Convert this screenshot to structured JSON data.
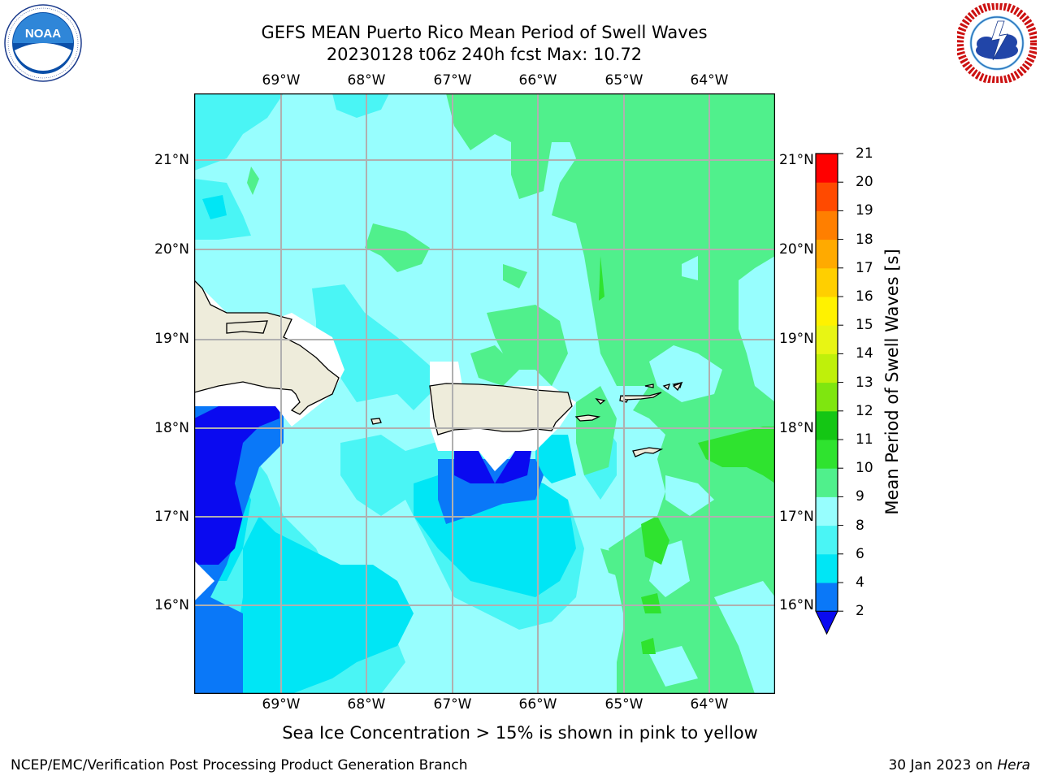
{
  "header": {
    "title_line1": "GEFS MEAN Puerto Rico Mean Period of Swell Waves",
    "title_line2": "20230128 t06z 240h fcst   Max: 10.72"
  },
  "logos": {
    "noaa": {
      "text": "NOAA",
      "ring_text": "NATIONAL OCEANIC AND ATMOSPHERIC ADMINISTRATION · U.S. DEPARTMENT OF COMMERCE"
    },
    "nws": {
      "ring_text": "NATIONAL WEATHER SERVICE"
    }
  },
  "map": {
    "lon_labels": [
      "69°W",
      "68°W",
      "67°W",
      "66°W",
      "65°W",
      "64°W"
    ],
    "lat_labels": [
      "21°N",
      "20°N",
      "19°N",
      "18°N",
      "17°N",
      "16°N"
    ],
    "land_color": "#eeecdb",
    "background_color": "#97fefe"
  },
  "colorbar": {
    "title": "Mean Period of Swell Waves [s]",
    "ticks": [
      "2",
      "4",
      "6",
      "8",
      "9",
      "10",
      "11",
      "12",
      "13",
      "14",
      "15",
      "16",
      "17",
      "18",
      "19",
      "20",
      "21"
    ],
    "colors": [
      "#0a0af0",
      "#0a78f8",
      "#00e6f5",
      "#4af5f5",
      "#97fefe",
      "#50f08c",
      "#2fe32f",
      "#14c614",
      "#7fe60f",
      "#bff00a",
      "#e8f514",
      "#fff200",
      "#ffcf00",
      "#ffaa00",
      "#ff7f00",
      "#ff4a00",
      "#ff0000"
    ]
  },
  "subtitle": "Sea Ice Concentration > 15% is shown in pink to yellow",
  "footer": {
    "left": "NCEP/EMC/Verification Post Processing Product Generation Branch",
    "right_prefix": "30 Jan 2023 on ",
    "right_host": "Hera"
  }
}
